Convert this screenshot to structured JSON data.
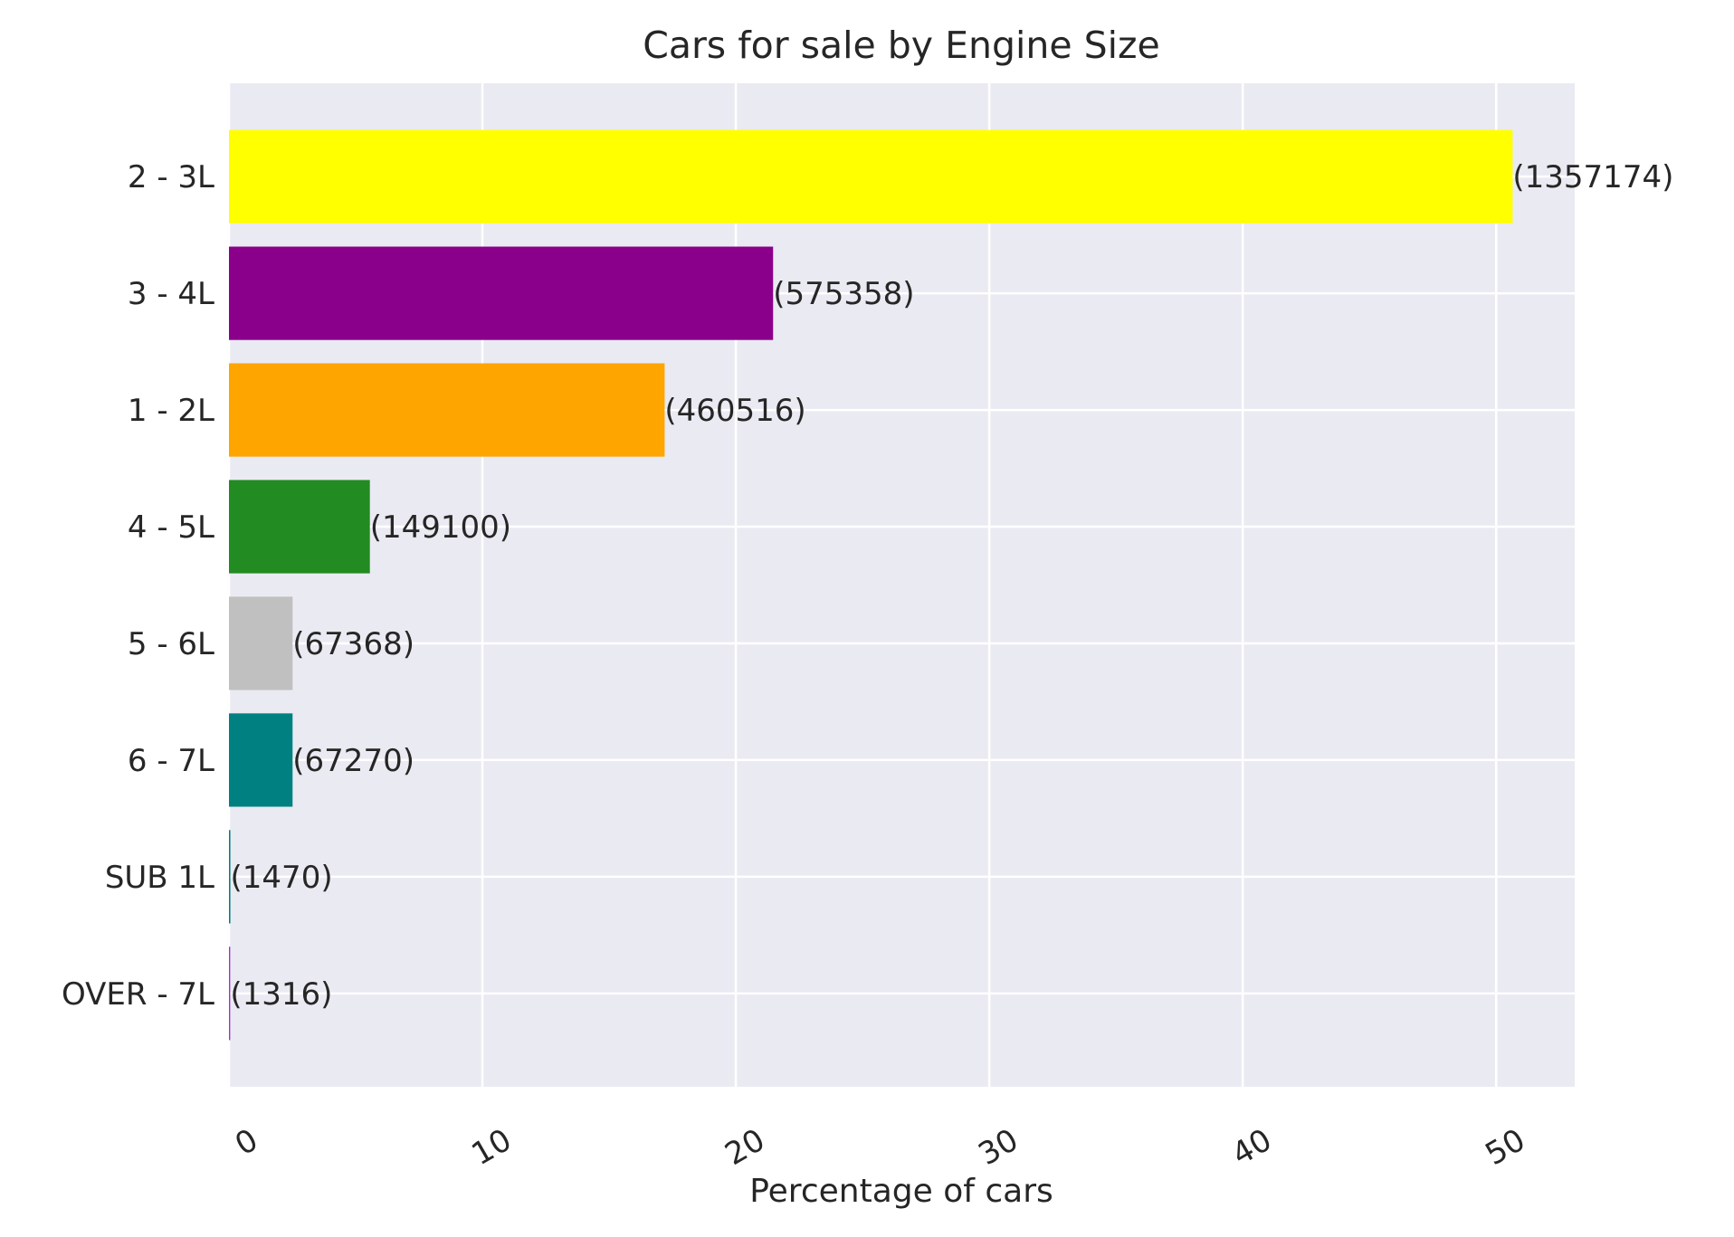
{
  "chart_data": {
    "type": "bar",
    "orientation": "horizontal",
    "title": "Cars for sale by Engine Size",
    "xlabel": "Percentage of cars",
    "ylabel": "",
    "xlim": [
      0,
      53.1
    ],
    "xticks": [
      "0",
      "10",
      "20",
      "30",
      "40",
      "50"
    ],
    "grid": true,
    "background": "#eaeaf2",
    "categories": [
      "2 - 3L",
      "3 - 4L",
      "1 - 2L",
      "4 - 5L",
      "5 - 6L",
      "6 - 7L",
      "SUB 1L",
      "OVER - 7L"
    ],
    "values": [
      50.65,
      21.47,
      17.19,
      5.56,
      2.51,
      2.51,
      0.055,
      0.049
    ],
    "data_labels": [
      "(1357174)",
      "(575358)",
      "(460516)",
      "(149100)",
      "(67368)",
      "(67270)",
      "(1470)",
      "(1316)"
    ],
    "colors": [
      "#ffff00",
      "#8b008b",
      "#ffa500",
      "#228b22",
      "#c0c0c0",
      "#008080",
      "#008080",
      "#9932cc"
    ]
  }
}
